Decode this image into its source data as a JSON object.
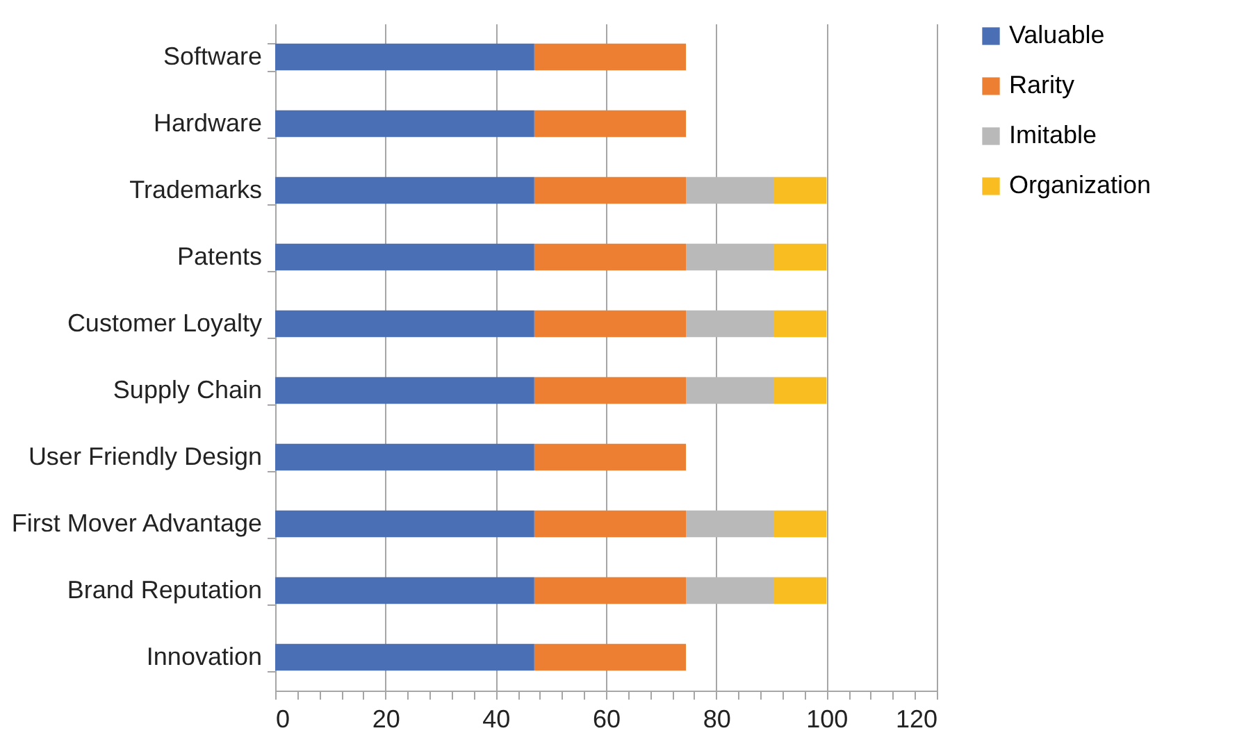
{
  "chart_data": {
    "type": "bar",
    "orientation": "horizontal",
    "stacked": true,
    "categories": [
      "Software",
      "Hardware",
      "Trademarks",
      "Patents",
      "Customer Loyalty",
      "Supply Chain",
      "User Friendly Design",
      "First Mover Advantage",
      "Brand Reputation",
      "Innovation"
    ],
    "series": [
      {
        "name": "Valuable",
        "color": "#4a6fb5",
        "values": [
          47,
          47,
          47,
          47,
          47,
          47,
          47,
          47,
          47,
          47
        ]
      },
      {
        "name": "Rarity",
        "color": "#ec7f32",
        "values": [
          27.5,
          27.5,
          27.5,
          27.5,
          27.5,
          27.5,
          27.5,
          27.5,
          27.5,
          27.5
        ]
      },
      {
        "name": "Imitable",
        "color": "#b9b9b9",
        "values": [
          null,
          null,
          16,
          16,
          16,
          16,
          null,
          16,
          16,
          null
        ]
      },
      {
        "name": "Organization",
        "color": "#f9bd22",
        "values": [
          null,
          null,
          9.5,
          9.5,
          9.5,
          9.5,
          null,
          9.5,
          9.5,
          null
        ]
      }
    ],
    "xlim": [
      0,
      120
    ],
    "xticks": [
      0,
      {
        "value": 4,
        "label": null
      },
      {
        "value": 8,
        "label": null
      },
      {
        "value": 12,
        "label": null
      },
      {
        "value": 16,
        "label": null
      },
      20,
      {
        "value": 24,
        "label": null
      },
      {
        "value": 28,
        "label": null
      },
      {
        "value": 32,
        "label": null
      },
      {
        "value": 36,
        "label": null
      },
      40,
      {
        "value": 44,
        "label": null
      },
      {
        "value": 48,
        "label": null
      },
      {
        "value": 52,
        "label": null
      },
      {
        "value": 56,
        "label": null
      },
      60,
      {
        "value": 64,
        "label": null
      },
      {
        "value": 68,
        "label": null
      },
      {
        "value": 72,
        "label": null
      },
      {
        "value": 76,
        "label": null
      },
      80,
      {
        "value": 84,
        "label": null
      },
      {
        "value": 88,
        "label": null
      },
      {
        "value": 92,
        "label": null
      },
      {
        "value": 96,
        "label": null
      },
      100,
      {
        "value": 104,
        "label": null
      },
      {
        "value": 108,
        "label": null
      },
      {
        "value": 112,
        "label": null
      },
      {
        "value": 116,
        "label": null
      },
      120
    ],
    "grid": "x",
    "legend": "right"
  }
}
